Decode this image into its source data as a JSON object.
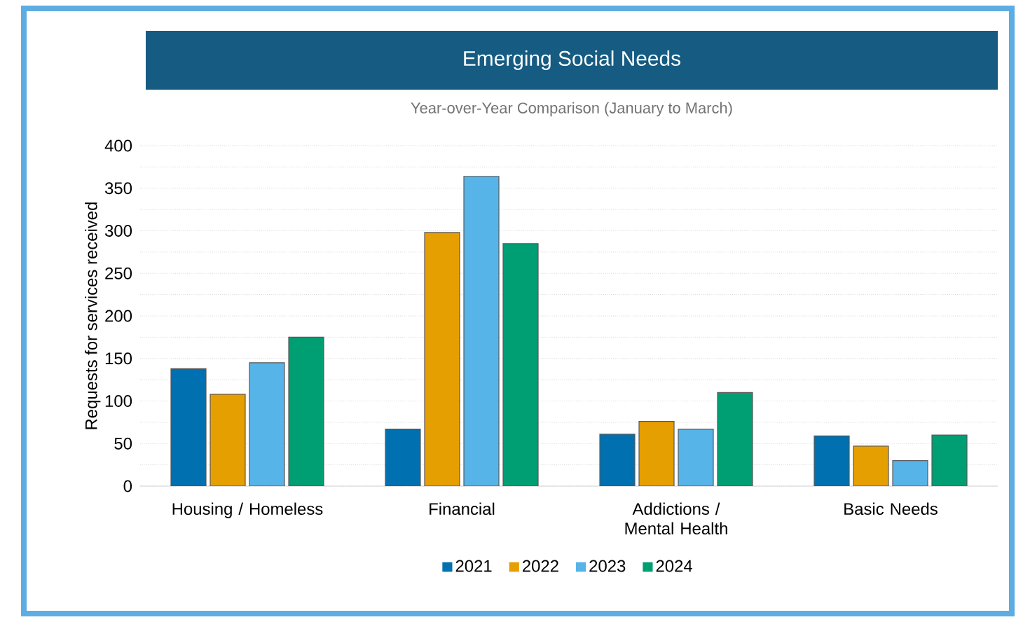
{
  "chart_data": {
    "type": "bar",
    "title": "Emerging Social Needs",
    "subtitle": "Year-over-Year Comparison (January to March)",
    "ylabel": "Requests for services received",
    "categories": [
      "Housing / Homeless",
      "Financial",
      "Addictions / Mental Health",
      "Basic Needs"
    ],
    "series": [
      {
        "name": "2021",
        "color": "#0070b0",
        "values": [
          138,
          67,
          61,
          59
        ]
      },
      {
        "name": "2022",
        "color": "#e69f00",
        "values": [
          108,
          298,
          76,
          47
        ]
      },
      {
        "name": "2023",
        "color": "#56b4e9",
        "values": [
          145,
          364,
          67,
          30
        ]
      },
      {
        "name": "2024",
        "color": "#009e73",
        "values": [
          175,
          285,
          110,
          60
        ]
      }
    ],
    "ylim": [
      0,
      400
    ],
    "yticks": [
      0,
      50,
      100,
      150,
      200,
      250,
      300,
      350,
      400
    ],
    "grid": "y",
    "legend": "bottom"
  }
}
